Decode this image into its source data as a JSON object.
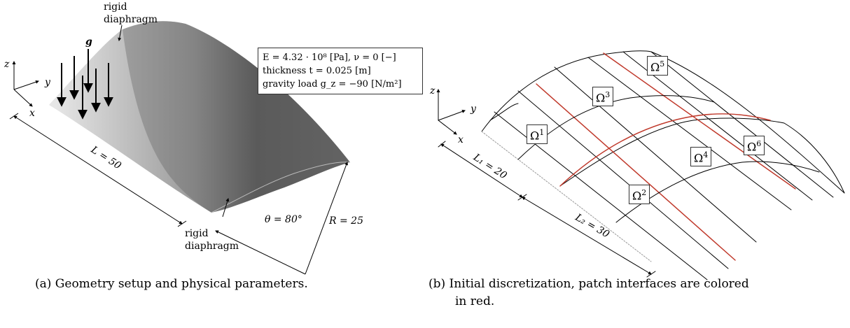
{
  "panel_a": {
    "rigid_top": "rigid",
    "diaphragm_top": "diaphragm",
    "rigid_bottom": "rigid",
    "diaphragm_bottom": "diaphragm",
    "gravity_symbol": "g",
    "axis_z": "z",
    "axis_y": "y",
    "axis_x": "x",
    "length_label": "L = 50",
    "angle_label": "θ = 80°",
    "radius_label": "R = 25",
    "props": {
      "line1": "E = 4.32 · 10⁸ [Pa], ν = 0 [−]",
      "line2": "thickness t = 0.025 [m]",
      "line3": "gravity load g_z = −90 [N/m²]"
    },
    "caption": "(a) Geometry setup and physical parameters."
  },
  "panel_b": {
    "axis_z": "z",
    "axis_y": "y",
    "axis_x": "x",
    "l1_label": "L₁ = 20",
    "l2_label": "L₂ = 30",
    "patches": [
      "Ω1",
      "Ω2",
      "Ω3",
      "Ω4",
      "Ω5",
      "Ω6"
    ],
    "caption_line1": "(b) Initial discretization, patch interfaces are colored",
    "caption_line2": "in red."
  },
  "colors": {
    "interface": "#c0392b",
    "shell_light": "#dedede",
    "shell_dark": "#555555"
  }
}
